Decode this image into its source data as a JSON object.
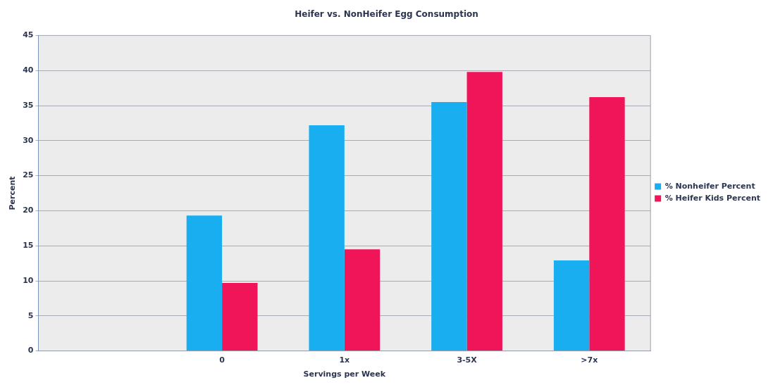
{
  "chart_data": {
    "type": "bar",
    "title": "Heifer vs. NonHeifer Egg Consumption",
    "xlabel": "Servings per Week",
    "ylabel": "Percent",
    "categories": [
      null,
      "0",
      "1x",
      "3-5X",
      ">7x"
    ],
    "series": [
      {
        "name": "% Nonheifer Percent",
        "color": "#19aeef",
        "values": [
          null,
          19.3,
          32.2,
          35.5,
          12.9
        ]
      },
      {
        "name": "% Heifer Kids Percent",
        "color": "#f01458",
        "values": [
          null,
          9.7,
          14.5,
          39.8,
          36.2
        ]
      }
    ],
    "ylim": [
      0,
      45
    ],
    "yticks": [
      0,
      5,
      10,
      15,
      20,
      25,
      30,
      35,
      40,
      45
    ],
    "grid": "y",
    "legend": "right"
  }
}
